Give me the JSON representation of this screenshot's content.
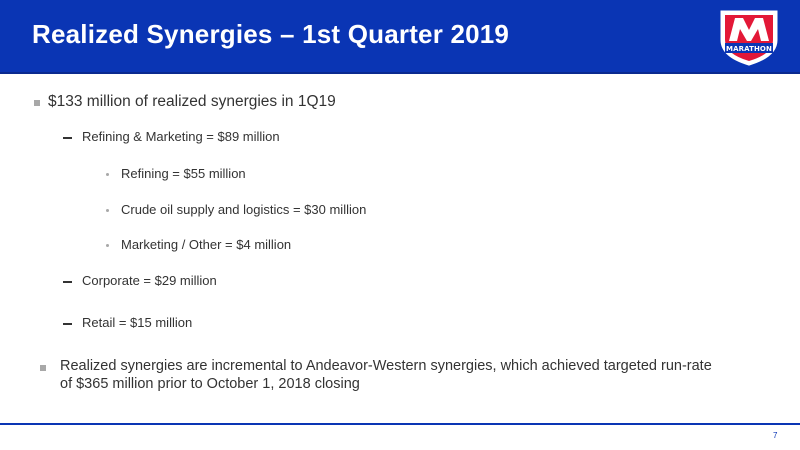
{
  "slide": {
    "title": "Realized Synergies – 1st Quarter 2019",
    "logo_text": "MARATHON",
    "page_number": "7"
  },
  "bullets": {
    "main": "$133 million of realized synergies in 1Q19",
    "refining_marketing": "Refining & Marketing = $89 million",
    "refining": "Refining = $55 million",
    "crude": "Crude oil supply and logistics = $30 million",
    "marketing_other": "Marketing / Other = $4 million",
    "corporate": "Corporate = $29 million",
    "retail": "Retail = $15 million",
    "note_line1": "Realized synergies are incremental to Andeavor-Western synergies, which achieved targeted run-rate",
    "note_line2": "of $365 million prior to October 1, 2018 closing"
  },
  "colors": {
    "header_blue": "#0a35b4",
    "logo_red": "#e31837",
    "text": "#333333",
    "bullet_gray": "#a8a8a8"
  }
}
